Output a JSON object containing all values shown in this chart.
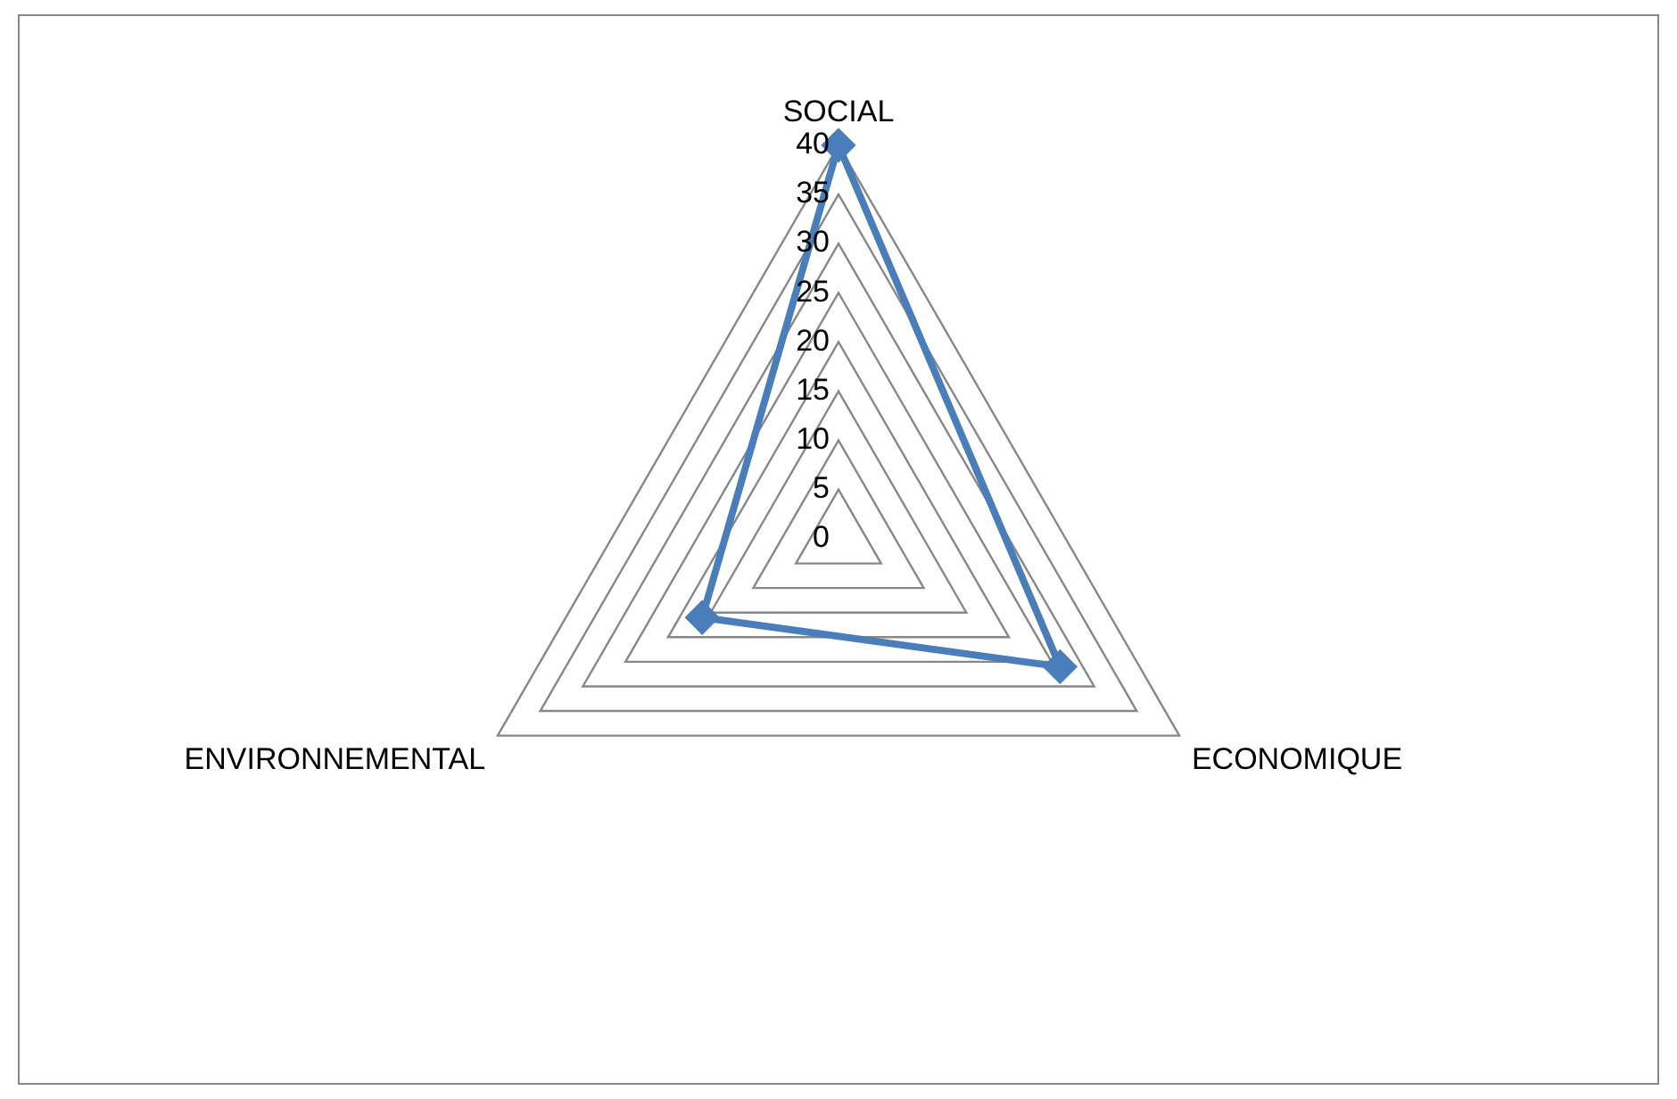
{
  "chart_data": {
    "type": "radar",
    "categories": [
      "SOCIAL",
      "ECONOMIQUE",
      "ENVIRONNEMENTAL"
    ],
    "series": [
      {
        "color": "#4a7ebb",
        "values": [
          40,
          26,
          16
        ]
      }
    ],
    "ylim": [
      0,
      40
    ],
    "yticks": [
      0,
      5,
      10,
      15,
      20,
      25,
      30,
      35,
      40
    ],
    "grid": true,
    "marker": "diamond"
  }
}
